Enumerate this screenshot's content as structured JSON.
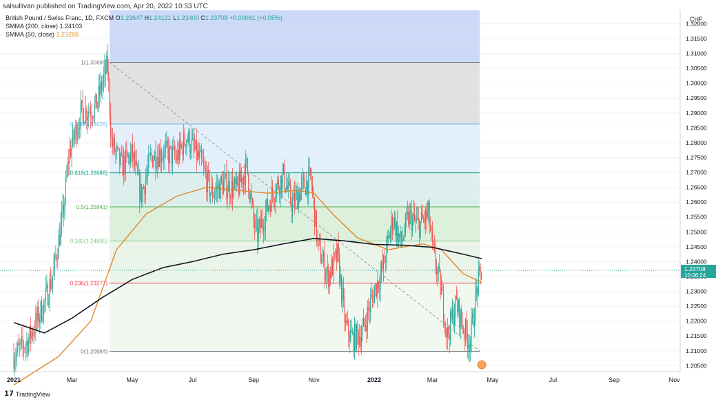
{
  "publisher_line": "salsullivan published on TradingView.com, Apr 20, 2022 10:53 UTC",
  "legend": {
    "symbol": "British Pound / Swiss Franc, 1D, FXCM",
    "ohlc": {
      "o_label": "O",
      "o": "1.23647",
      "h_label": "H",
      "h": "1.24121",
      "l_label": "L",
      "l": "1.23400",
      "c_label": "C",
      "c": "1.23708",
      "chg": "+0.00061 (+0.05%)"
    },
    "sma200": {
      "label": "SMMA (200, close)",
      "value": "1.24103"
    },
    "sma50": {
      "label": "SMMA (50, close)",
      "value": "1.23295"
    }
  },
  "currency_label": "CHF",
  "branding": "TradingView",
  "colors": {
    "up": "#26a69a",
    "down": "#ef5350",
    "sma200": "#131722",
    "sma50": "#e1872a"
  },
  "chart_data": {
    "type": "candlestick",
    "symbol": "GBPCHF",
    "interval": "1D",
    "x_ticks": [
      "2021",
      "Mar",
      "May",
      "Jul",
      "Sep",
      "Nov",
      "2022",
      "Mar",
      "May",
      "Jul",
      "Sep",
      "Nov"
    ],
    "y_ticks": [
      "1.32000",
      "1.31500",
      "1.31000",
      "1.30500",
      "1.30000",
      "1.29500",
      "1.29000",
      "1.28500",
      "1.28000",
      "1.27500",
      "1.27000",
      "1.26500",
      "1.26000",
      "1.25500",
      "1.25000",
      "1.24500",
      "1.24000",
      "1.23500",
      "1.23000",
      "1.22500",
      "1.22000",
      "1.21500",
      "1.21000",
      "1.20500"
    ],
    "ylim": [
      1.203,
      1.3245
    ],
    "last_price": {
      "value": "1.23708",
      "countdown": "10:06:24"
    },
    "fib_levels": [
      {
        "label": "1(1.30699)",
        "value": 1.30699
      },
      {
        "label": "0.786(1.28626)",
        "value": 1.28626
      },
      {
        "label": "0.618(1.26988)",
        "value": 1.26988
      },
      {
        "label": "0.5(1.25841)",
        "value": 1.25841
      },
      {
        "label": "0.382(1.24695)",
        "value": 1.24695
      },
      {
        "label": "0.236(1.23277)",
        "value": 1.23277
      },
      {
        "label": "0(1.20984)",
        "value": 1.20984
      }
    ],
    "price_path": [
      [
        "2021-01-01",
        1.2085
      ],
      [
        "2021-01-15",
        1.213
      ],
      [
        "2021-02-01",
        1.226
      ],
      [
        "2021-02-10",
        1.236
      ],
      [
        "2021-02-20",
        1.256
      ],
      [
        "2021-02-26",
        1.276
      ],
      [
        "2021-03-10",
        1.29
      ],
      [
        "2021-03-25",
        1.292
      ],
      [
        "2021-04-06",
        1.306
      ],
      [
        "2021-04-10",
        1.28
      ],
      [
        "2021-04-20",
        1.272
      ],
      [
        "2021-05-01",
        1.276
      ],
      [
        "2021-05-10",
        1.262
      ],
      [
        "2021-05-20",
        1.275
      ],
      [
        "2021-06-01",
        1.277
      ],
      [
        "2021-06-15",
        1.275
      ],
      [
        "2021-06-25",
        1.282
      ],
      [
        "2021-07-10",
        1.273
      ],
      [
        "2021-07-20",
        1.263
      ],
      [
        "2021-08-01",
        1.266
      ],
      [
        "2021-08-15",
        1.264
      ],
      [
        "2021-08-25",
        1.272
      ],
      [
        "2021-09-01",
        1.253
      ],
      [
        "2021-09-05",
        1.249
      ],
      [
        "2021-09-20",
        1.263
      ],
      [
        "2021-10-01",
        1.269
      ],
      [
        "2021-10-10",
        1.259
      ],
      [
        "2021-10-20",
        1.265
      ],
      [
        "2021-10-29",
        1.268
      ],
      [
        "2021-11-05",
        1.245
      ],
      [
        "2021-11-15",
        1.235
      ],
      [
        "2021-11-25",
        1.242
      ],
      [
        "2021-12-03",
        1.218
      ],
      [
        "2021-12-10",
        1.214
      ],
      [
        "2021-12-20",
        1.216
      ],
      [
        "2021-12-30",
        1.228
      ],
      [
        "2022-01-10",
        1.238
      ],
      [
        "2022-01-20",
        1.255
      ],
      [
        "2022-01-28",
        1.246
      ],
      [
        "2022-02-05",
        1.255
      ],
      [
        "2022-02-15",
        1.252
      ],
      [
        "2022-02-25",
        1.256
      ],
      [
        "2022-03-01",
        1.244
      ],
      [
        "2022-03-10",
        1.23
      ],
      [
        "2022-03-16",
        1.215
      ],
      [
        "2022-03-25",
        1.226
      ],
      [
        "2022-04-01",
        1.218
      ],
      [
        "2022-04-08",
        1.213
      ],
      [
        "2022-04-12",
        1.223
      ],
      [
        "2022-04-15",
        1.231
      ],
      [
        "2022-04-20",
        1.2371
      ]
    ],
    "sma200_path": [
      [
        "2021-01-01",
        1.2195
      ],
      [
        "2021-02-01",
        1.216
      ],
      [
        "2021-03-01",
        1.221
      ],
      [
        "2021-04-01",
        1.228
      ],
      [
        "2021-05-01",
        1.234
      ],
      [
        "2021-06-01",
        1.238
      ],
      [
        "2021-07-01",
        1.24
      ],
      [
        "2021-08-01",
        1.2425
      ],
      [
        "2021-09-01",
        1.244
      ],
      [
        "2021-10-01",
        1.246
      ],
      [
        "2021-11-01",
        1.2478
      ],
      [
        "2021-12-01",
        1.247
      ],
      [
        "2022-01-01",
        1.2458
      ],
      [
        "2022-02-01",
        1.2455
      ],
      [
        "2022-03-01",
        1.2448
      ],
      [
        "2022-04-01",
        1.2425
      ],
      [
        "2022-04-20",
        1.241
      ]
    ],
    "sma50_path": [
      [
        "2021-01-01",
        1.1985
      ],
      [
        "2021-02-15",
        1.208
      ],
      [
        "2021-03-20",
        1.22
      ],
      [
        "2021-04-15",
        1.244
      ],
      [
        "2021-05-15",
        1.256
      ],
      [
        "2021-06-15",
        1.262
      ],
      [
        "2021-07-15",
        1.265
      ],
      [
        "2021-08-15",
        1.264
      ],
      [
        "2021-09-15",
        1.263
      ],
      [
        "2021-10-15",
        1.264
      ],
      [
        "2021-11-01",
        1.263
      ],
      [
        "2021-11-20",
        1.256
      ],
      [
        "2021-12-15",
        1.248
      ],
      [
        "2022-01-15",
        1.244
      ],
      [
        "2022-02-01",
        1.245
      ],
      [
        "2022-02-20",
        1.246
      ],
      [
        "2022-03-10",
        1.244
      ],
      [
        "2022-04-01",
        1.236
      ],
      [
        "2022-04-20",
        1.233
      ]
    ]
  }
}
